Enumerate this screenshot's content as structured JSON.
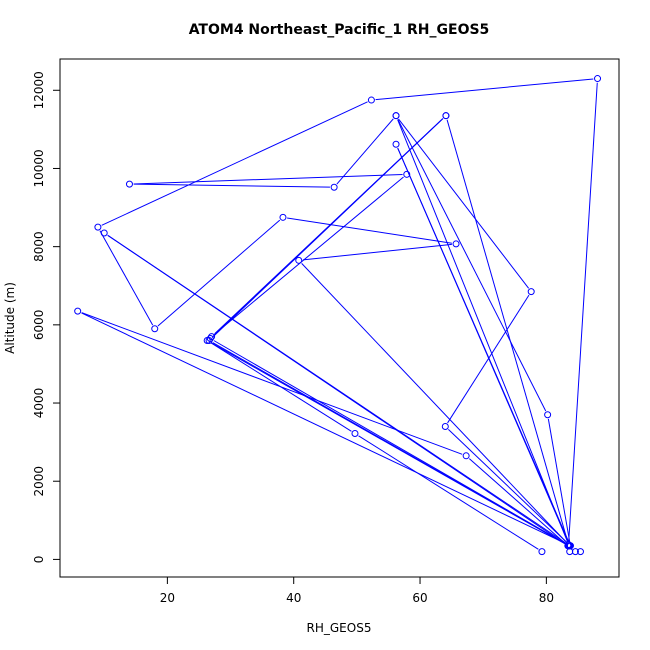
{
  "chart_data": {
    "type": "line",
    "title": "ATOM4 Northeast_Pacific_1 RH_GEOS5",
    "xlabel": "RH_GEOS5",
    "ylabel": "Altitude (m)",
    "xlim": [
      3.0,
      91.5
    ],
    "ylim": [
      -450,
      12800
    ],
    "x_ticks": [
      20,
      40,
      60,
      80
    ],
    "x_tick_labels": [
      "20",
      "40",
      "60",
      "80"
    ],
    "y_ticks": [
      0,
      2000,
      4000,
      6000,
      8000,
      10000,
      12000
    ],
    "y_tick_labels": [
      "0",
      "2000",
      "4000",
      "6000",
      "8000",
      "10000",
      "12000"
    ],
    "grid": false,
    "series": [
      {
        "color": "#0000ff",
        "marker": "open-circle",
        "points": [
          {
            "x": 79.3,
            "y": 200
          },
          {
            "x": 49.7,
            "y": 3220
          },
          {
            "x": 26.3,
            "y": 5600
          },
          {
            "x": 83.5,
            "y": 350
          },
          {
            "x": 88.1,
            "y": 12300
          },
          {
            "x": 52.3,
            "y": 11750
          },
          {
            "x": 9.0,
            "y": 8500
          },
          {
            "x": 18.0,
            "y": 5900
          },
          {
            "x": 38.3,
            "y": 8750
          },
          {
            "x": 65.7,
            "y": 8070
          },
          {
            "x": 40.8,
            "y": 7650
          },
          {
            "x": 83.5,
            "y": 380
          },
          {
            "x": 64.1,
            "y": 11350
          },
          {
            "x": 27.0,
            "y": 5700
          },
          {
            "x": 57.9,
            "y": 9850
          },
          {
            "x": 14.0,
            "y": 9600
          },
          {
            "x": 46.4,
            "y": 9520
          },
          {
            "x": 56.2,
            "y": 11350
          },
          {
            "x": 77.6,
            "y": 6850
          },
          {
            "x": 64.0,
            "y": 3400
          },
          {
            "x": 83.8,
            "y": 350
          },
          {
            "x": 5.8,
            "y": 6350
          },
          {
            "x": 67.3,
            "y": 2650
          },
          {
            "x": 83.4,
            "y": 350
          },
          {
            "x": 10.0,
            "y": 8350
          },
          {
            "x": 83.7,
            "y": 350
          },
          {
            "x": 56.2,
            "y": 10620
          },
          {
            "x": 83.8,
            "y": 350
          },
          {
            "x": 80.2,
            "y": 3700
          },
          {
            "x": 56.2,
            "y": 11350
          },
          {
            "x": 83.6,
            "y": 350
          },
          {
            "x": 26.6,
            "y": 5600
          },
          {
            "x": 64.1,
            "y": 11350
          },
          {
            "x": 26.8,
            "y": 5650
          },
          {
            "x": 83.6,
            "y": 350
          },
          {
            "x": 83.7,
            "y": 200
          },
          {
            "x": 84.6,
            "y": 200
          },
          {
            "x": 85.4,
            "y": 200
          }
        ]
      }
    ]
  }
}
